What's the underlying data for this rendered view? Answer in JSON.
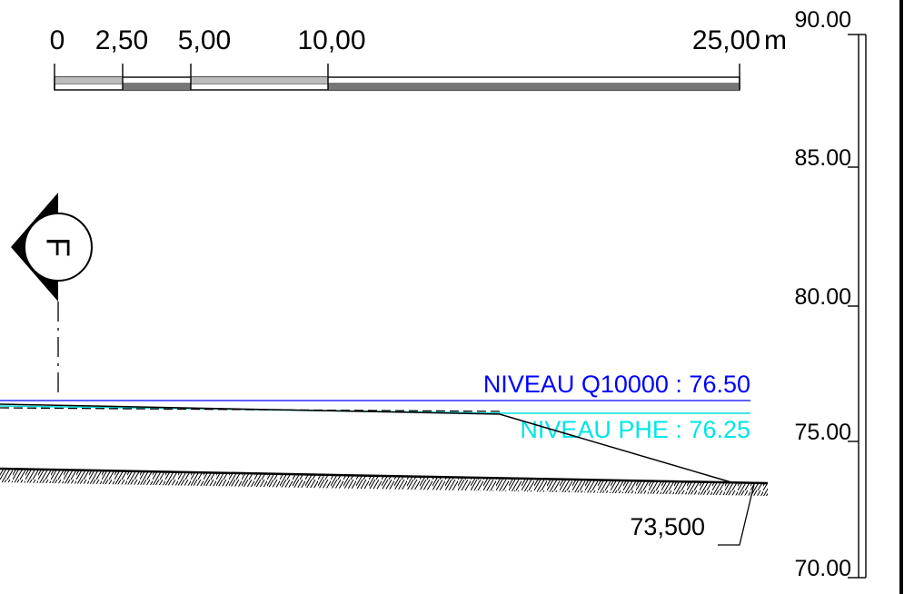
{
  "scale_bar": {
    "ticks": [
      "0",
      "2,50",
      "5,00",
      "10,00",
      "25,00"
    ],
    "unit": "m"
  },
  "elevation_scale": {
    "labels": [
      "90.00",
      "85.00",
      "80.00",
      "75.00",
      "70.00"
    ]
  },
  "section_marker": {
    "letter": "F"
  },
  "water_levels": {
    "q10000": {
      "text": "NIVEAU Q10000 : 76.50",
      "color": "#0000ff"
    },
    "phe": {
      "text": "NIVEAU  PHE : 76.25",
      "color": "#00e5e5"
    }
  },
  "ground": {
    "level_label": "73,500"
  }
}
